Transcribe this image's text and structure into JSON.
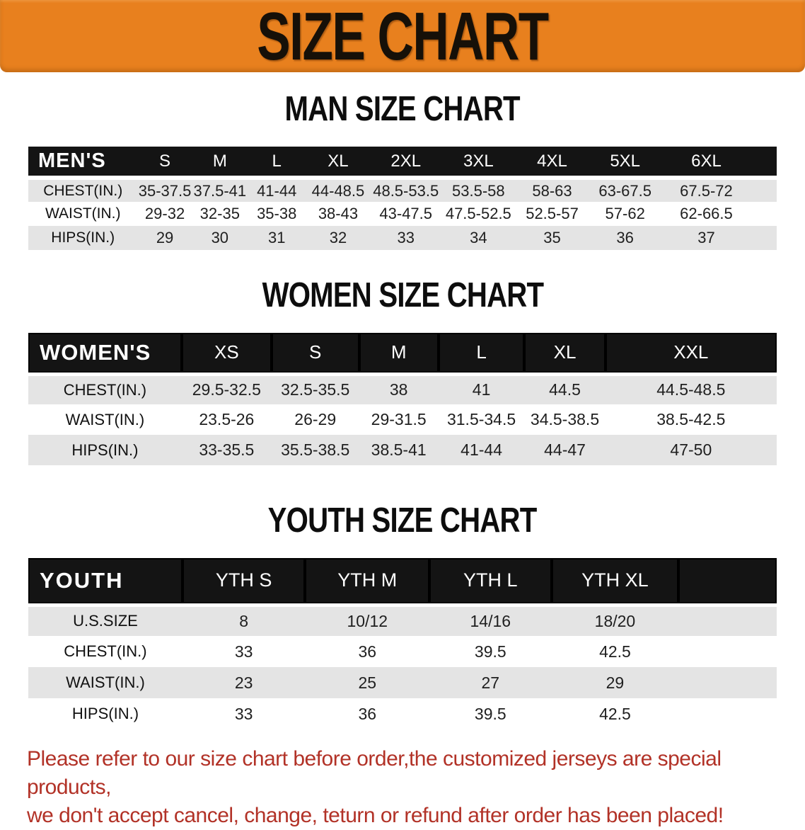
{
  "banner": {
    "title": "SIZE CHART"
  },
  "sections": [
    {
      "id": "men",
      "heading": "MAN SIZE CHART",
      "table": {
        "header_label": "MEN'S",
        "columns": [
          "S",
          "M",
          "L",
          "XL",
          "2XL",
          "3XL",
          "4XL",
          "5XL",
          "6XL"
        ],
        "rows": [
          {
            "label": "CHEST(IN.)",
            "values": [
              "35-37.5",
              "37.5-41",
              "41-44",
              "44-48.5",
              "48.5-53.5",
              "53.5-58",
              "58-63",
              "63-67.5",
              "67.5-72"
            ]
          },
          {
            "label": "WAIST(IN.)",
            "values": [
              "29-32",
              "32-35",
              "35-38",
              "38-43",
              "43-47.5",
              "47.5-52.5",
              "52.5-57",
              "57-62",
              "62-66.5"
            ]
          },
          {
            "label": "HIPS(IN.)",
            "values": [
              "29",
              "30",
              "31",
              "32",
              "33",
              "34",
              "35",
              "36",
              "37"
            ]
          }
        ]
      }
    },
    {
      "id": "women",
      "heading": "WOMEN SIZE CHART",
      "table": {
        "header_label": "WOMEN'S",
        "columns": [
          "XS",
          "S",
          "M",
          "L",
          "XL",
          "XXL"
        ],
        "rows": [
          {
            "label": "CHEST(IN.)",
            "values": [
              "29.5-32.5",
              "32.5-35.5",
              "38",
              "41",
              "44.5",
              "44.5-48.5"
            ]
          },
          {
            "label": "WAIST(IN.)",
            "values": [
              "23.5-26",
              "26-29",
              "29-31.5",
              "31.5-34.5",
              "34.5-38.5",
              "38.5-42.5"
            ]
          },
          {
            "label": "HIPS(IN.)",
            "values": [
              "33-35.5",
              "35.5-38.5",
              "38.5-41",
              "41-44",
              "44-47",
              "47-50"
            ]
          }
        ]
      }
    },
    {
      "id": "youth",
      "heading": "YOUTH SIZE CHART",
      "table": {
        "header_label": "YOUTH",
        "columns": [
          "YTH S",
          "YTH M",
          "YTH L",
          "YTH XL"
        ],
        "rows": [
          {
            "label": "U.S.SIZE",
            "values": [
              "8",
              "10/12",
              "14/16",
              "18/20"
            ]
          },
          {
            "label": "CHEST(IN.)",
            "values": [
              "33",
              "36",
              "39.5",
              "42.5"
            ]
          },
          {
            "label": "WAIST(IN.)",
            "values": [
              "23",
              "25",
              "27",
              "29"
            ]
          },
          {
            "label": "HIPS(IN.)",
            "values": [
              "33",
              "36",
              "39.5",
              "42.5"
            ]
          }
        ]
      }
    }
  ],
  "disclaimer": {
    "line1": "Please refer to our size chart before order,the customized jerseys are special products,",
    "line2": "we don't accept cancel, change, teturn or refund after order has been placed!"
  },
  "colors": {
    "banner_bg": "#e8801e",
    "table_header_bg": "#141414",
    "row_alt_bg": "#e4e4e4",
    "disclaimer_text": "#b23227"
  }
}
